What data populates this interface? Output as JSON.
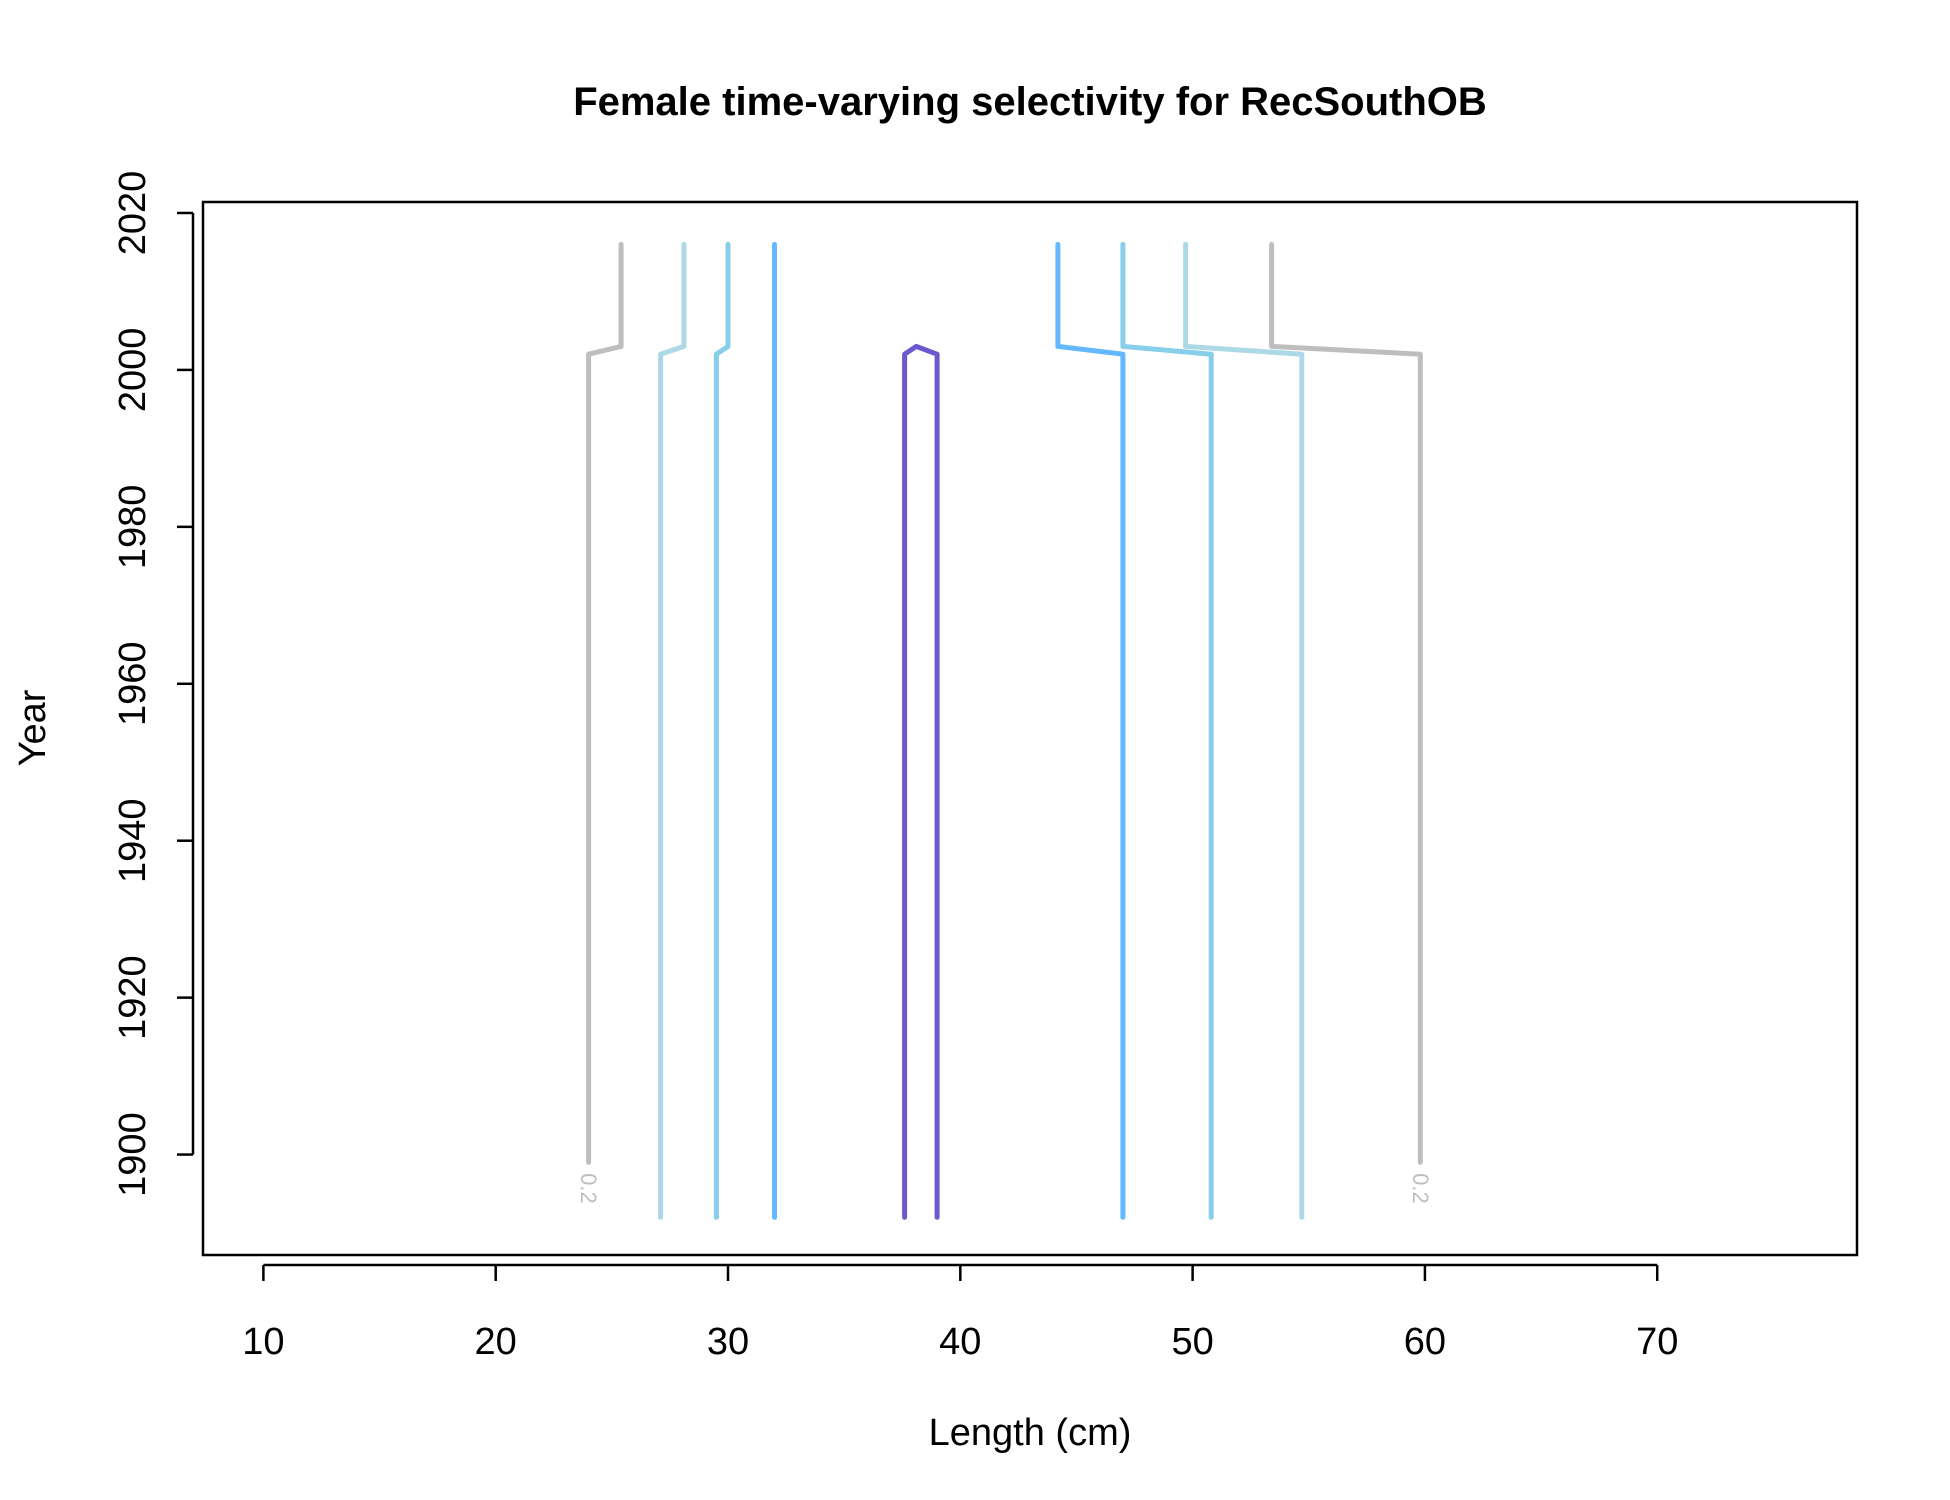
{
  "chart_data": {
    "type": "contour",
    "title": "Female time-varying selectivity for RecSouthOB",
    "xlabel": "Length (cm)",
    "ylabel": "Year",
    "xlim": [
      7.4,
      78.6
    ],
    "ylim": [
      1887.2,
      2021.4
    ],
    "xticks": [
      10,
      20,
      30,
      40,
      50,
      60,
      70
    ],
    "yticks": [
      1900,
      1920,
      1940,
      1960,
      1980,
      2000,
      2020
    ],
    "grid": false,
    "contour_labels": [
      "0.2",
      "0.2"
    ],
    "series": [
      {
        "color": "#bebebe",
        "label": "0.2",
        "lines": [
          {
            "points": [
              [
                24.0,
                1899.0
              ],
              [
                24.0,
                2002.0
              ],
              [
                25.4,
                2003.0
              ],
              [
                25.4,
                2016.0
              ]
            ]
          },
          {
            "points": [
              [
                53.4,
                2016.0
              ],
              [
                53.4,
                2003.0
              ],
              [
                59.8,
                2002.0
              ],
              [
                59.8,
                1899.0
              ]
            ]
          }
        ]
      },
      {
        "color": "#add8e6",
        "lines": [
          {
            "points": [
              [
                27.1,
                1892.0
              ],
              [
                27.1,
                2002.0
              ],
              [
                28.1,
                2003.0
              ],
              [
                28.1,
                2016.0
              ]
            ]
          },
          {
            "points": [
              [
                49.7,
                2016.0
              ],
              [
                49.7,
                2003.0
              ],
              [
                54.7,
                2002.0
              ],
              [
                54.7,
                1892.0
              ]
            ]
          }
        ]
      },
      {
        "color": "#87ceeb",
        "lines": [
          {
            "points": [
              [
                29.5,
                1892.0
              ],
              [
                29.5,
                2002.0
              ],
              [
                30.0,
                2003.0
              ],
              [
                30.0,
                2016.0
              ]
            ]
          },
          {
            "points": [
              [
                47.0,
                2016.0
              ],
              [
                47.0,
                2003.0
              ],
              [
                50.8,
                2002.0
              ],
              [
                50.8,
                1892.0
              ]
            ]
          }
        ]
      },
      {
        "color": "#63b8ff",
        "lines": [
          {
            "points": [
              [
                32.0,
                1892.0
              ],
              [
                32.0,
                2002.0
              ],
              [
                32.0,
                2003.0
              ],
              [
                32.0,
                2016.0
              ]
            ]
          },
          {
            "points": [
              [
                44.2,
                2016.0
              ],
              [
                44.2,
                2003.0
              ],
              [
                47.0,
                2002.0
              ],
              [
                47.0,
                1892.0
              ]
            ]
          }
        ]
      },
      {
        "color": "#6a5acd",
        "lines": [
          {
            "points": [
              [
                37.6,
                1892.0
              ],
              [
                37.6,
                2002.0
              ],
              [
                38.1,
                2003.0
              ],
              [
                39.0,
                2002.0
              ],
              [
                39.0,
                1892.0
              ]
            ]
          }
        ]
      }
    ]
  }
}
